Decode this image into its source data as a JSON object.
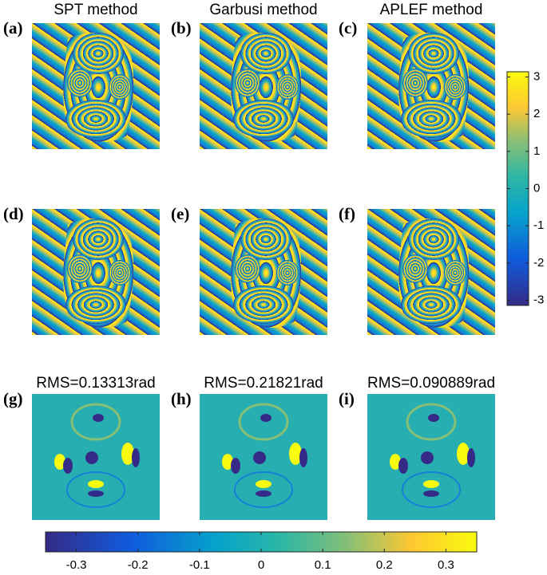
{
  "columns": [
    "SPT method",
    "Garbusi method",
    "APLEF method"
  ],
  "panels": [
    "(a)",
    "(b)",
    "(c)",
    "(d)",
    "(e)",
    "(f)",
    "(g)",
    "(h)",
    "(i)"
  ],
  "rms": [
    "RMS=0.13313rad",
    "RMS=0.21821rad",
    "RMS=0.090889rad"
  ],
  "phase_colorbar": {
    "lim": [
      -3.14,
      3.14
    ],
    "ticks": [
      -3,
      -2,
      -1,
      0,
      1,
      2,
      3
    ]
  },
  "error_colorbar": {
    "lim": [
      -0.35,
      0.35
    ],
    "ticks": [
      -0.3,
      -0.2,
      -0.1,
      0,
      0.1,
      0.2,
      0.3
    ]
  }
}
